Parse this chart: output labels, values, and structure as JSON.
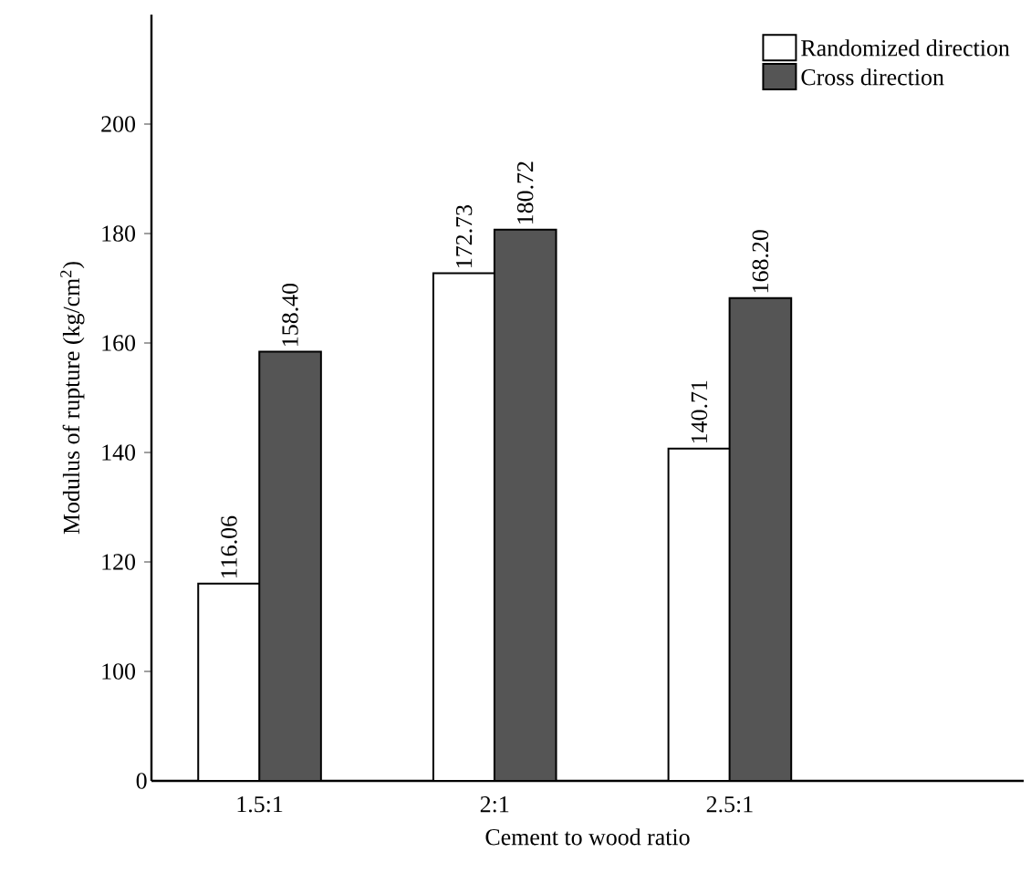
{
  "chart_data": {
    "type": "bar",
    "xlabel": "Cement to wood ratio",
    "ylabel": "Modulus of rupture (kg/cm$^{2}$)",
    "categories": [
      "1.5:1",
      "2:1",
      "2.5:1"
    ],
    "series": [
      {
        "name": "Randomized direction",
        "color": "#ffffff",
        "values": [
          116.06,
          172.73,
          140.71
        ],
        "value_labels": [
          "116.06",
          "172.73",
          "140.71"
        ]
      },
      {
        "name": "Cross direction",
        "color": "#555555",
        "values": [
          158.4,
          180.72,
          168.2
        ],
        "value_labels": [
          "158.40",
          "180.72",
          "168.20"
        ]
      }
    ],
    "ylim": [
      80,
      220
    ],
    "yticks": [
      100,
      120,
      140,
      160,
      180,
      200
    ],
    "annotations": [
      "0"
    ],
    "legend": "top right",
    "grid": false
  }
}
